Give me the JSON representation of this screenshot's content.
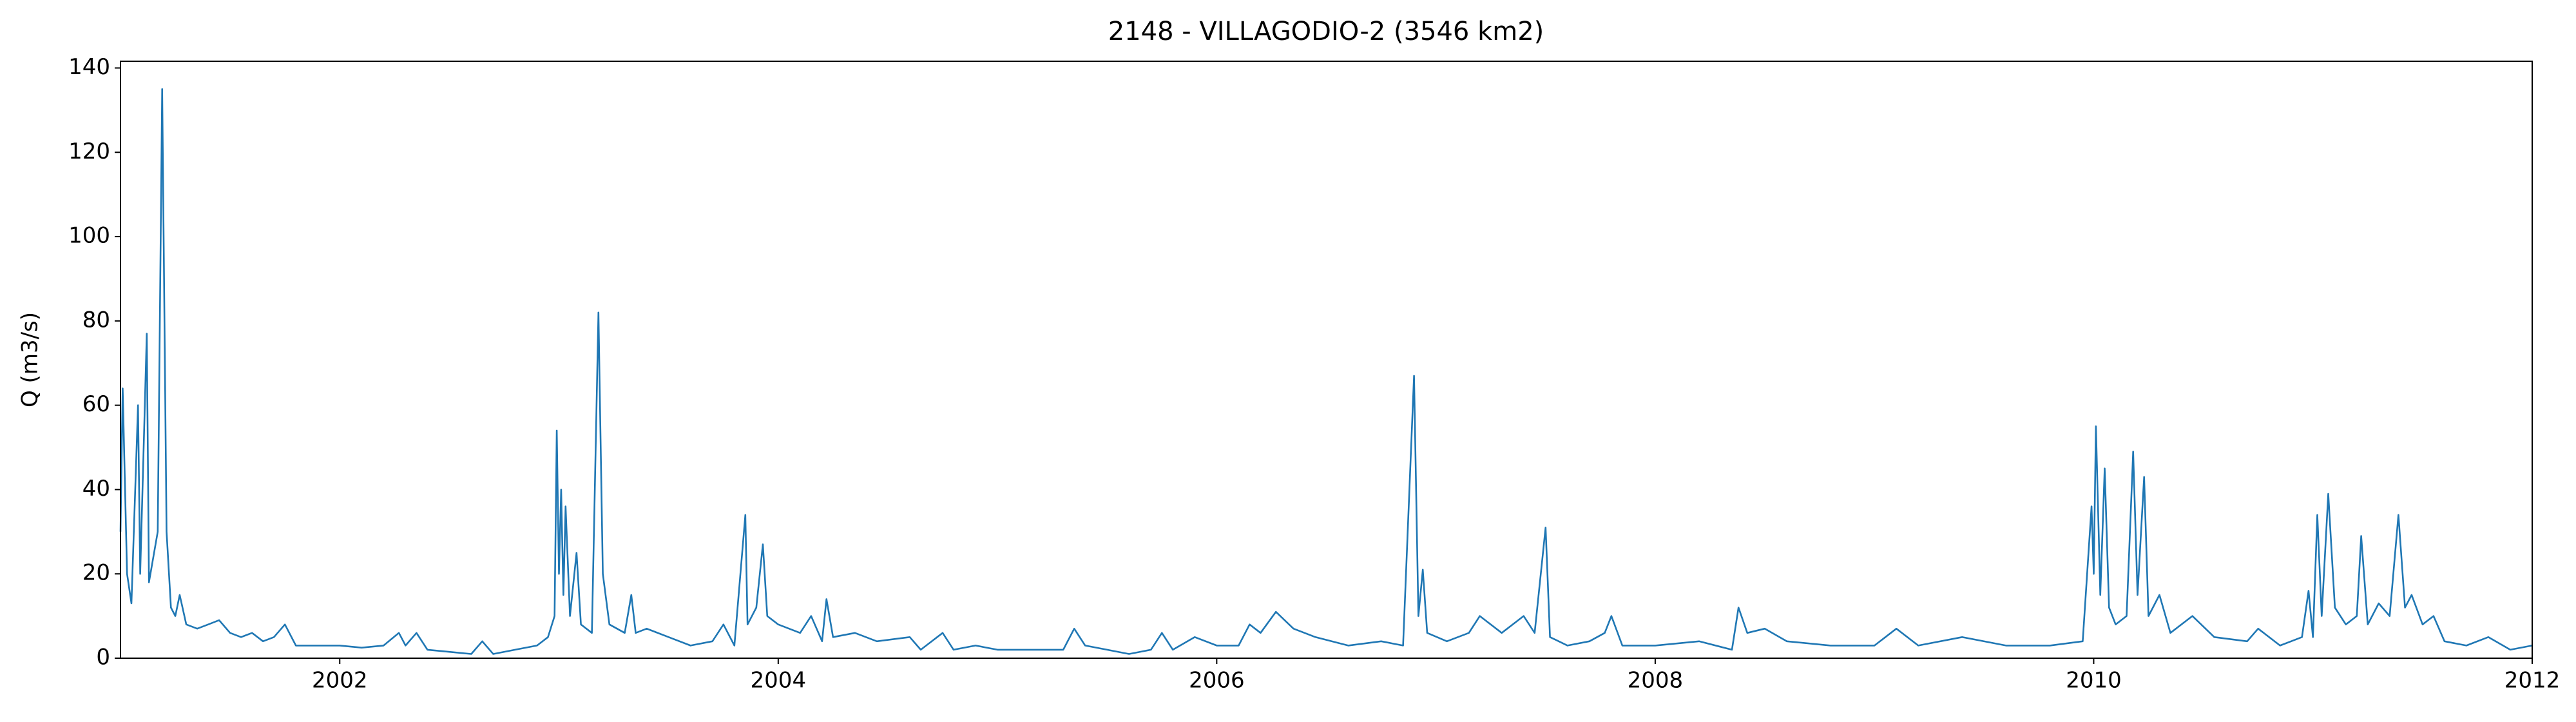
{
  "chart_data": {
    "type": "line",
    "title": "2148 - VILLAGODIO-2 (3546 km2)",
    "y_label": "Q (m3/s)",
    "x": [
      2001.0,
      2001.01,
      2001.03,
      2001.05,
      2001.08,
      2001.09,
      2001.12,
      2001.13,
      2001.17,
      2001.19,
      2001.21,
      2001.23,
      2001.25,
      2001.27,
      2001.3,
      2001.35,
      2001.4,
      2001.45,
      2001.5,
      2001.55,
      2001.6,
      2001.65,
      2001.7,
      2001.75,
      2001.8,
      2001.9,
      2002.0,
      2002.1,
      2002.2,
      2002.27,
      2002.3,
      2002.35,
      2002.4,
      2002.5,
      2002.6,
      2002.65,
      2002.7,
      2002.8,
      2002.9,
      2002.95,
      2002.98,
      2002.99,
      2003.0,
      2003.01,
      2003.02,
      2003.03,
      2003.05,
      2003.08,
      2003.1,
      2003.15,
      2003.18,
      2003.2,
      2003.23,
      2003.3,
      2003.33,
      2003.35,
      2003.4,
      2003.5,
      2003.6,
      2003.7,
      2003.75,
      2003.8,
      2003.85,
      2003.86,
      2003.9,
      2003.93,
      2003.95,
      2004.0,
      2004.1,
      2004.15,
      2004.2,
      2004.22,
      2004.25,
      2004.35,
      2004.45,
      2004.6,
      2004.65,
      2004.75,
      2004.8,
      2004.9,
      2005.0,
      2005.2,
      2005.3,
      2005.35,
      2005.4,
      2005.5,
      2005.6,
      2005.7,
      2005.75,
      2005.8,
      2005.9,
      2006.0,
      2006.1,
      2006.15,
      2006.2,
      2006.27,
      2006.35,
      2006.45,
      2006.6,
      2006.75,
      2006.85,
      2006.9,
      2006.92,
      2006.94,
      2006.96,
      2007.05,
      2007.15,
      2007.2,
      2007.3,
      2007.4,
      2007.45,
      2007.5,
      2007.52,
      2007.6,
      2007.7,
      2007.77,
      2007.8,
      2007.85,
      2008.0,
      2008.2,
      2008.35,
      2008.38,
      2008.42,
      2008.5,
      2008.6,
      2008.8,
      2009.0,
      2009.1,
      2009.2,
      2009.4,
      2009.6,
      2009.8,
      2009.95,
      2009.99,
      2010.0,
      2010.01,
      2010.03,
      2010.05,
      2010.07,
      2010.1,
      2010.15,
      2010.18,
      2010.2,
      2010.23,
      2010.25,
      2010.3,
      2010.35,
      2010.45,
      2010.55,
      2010.7,
      2010.75,
      2010.85,
      2010.95,
      2010.98,
      2011.0,
      2011.02,
      2011.04,
      2011.07,
      2011.1,
      2011.15,
      2011.2,
      2011.22,
      2011.25,
      2011.3,
      2011.35,
      2011.39,
      2011.42,
      2011.45,
      2011.5,
      2011.55,
      2011.6,
      2011.7,
      2011.8,
      2011.9,
      2012.0
    ],
    "series": [
      {
        "color": "#1f77b4",
        "values": [
          30,
          64,
          20,
          13,
          60,
          20,
          77,
          18,
          30,
          135,
          30,
          12,
          10,
          15,
          8,
          7,
          8,
          9,
          6,
          5,
          6,
          4,
          5,
          8,
          3,
          3,
          3,
          2.5,
          3,
          6,
          3,
          6,
          2,
          1.5,
          1,
          4,
          1,
          2,
          3,
          5,
          10,
          54,
          20,
          40,
          15,
          36,
          10,
          25,
          8,
          6,
          82,
          20,
          8,
          6,
          15,
          6,
          7,
          5,
          3,
          4,
          8,
          3,
          34,
          8,
          12,
          27,
          10,
          8,
          6,
          10,
          4,
          14,
          5,
          6,
          4,
          5,
          2,
          6,
          2,
          3,
          2,
          2,
          2,
          7,
          3,
          2,
          1,
          2,
          6,
          2,
          5,
          3,
          3,
          8,
          6,
          11,
          7,
          5,
          3,
          4,
          3,
          67,
          10,
          21,
          6,
          4,
          6,
          10,
          6,
          10,
          6,
          31,
          5,
          3,
          4,
          6,
          10,
          3,
          3,
          4,
          2,
          12,
          6,
          7,
          4,
          3,
          3,
          7,
          3,
          5,
          3,
          3,
          4,
          36,
          20,
          55,
          15,
          45,
          12,
          8,
          10,
          49,
          15,
          43,
          10,
          15,
          6,
          10,
          5,
          4,
          7,
          3,
          5,
          16,
          5,
          34,
          10,
          39,
          12,
          8,
          10,
          29,
          8,
          13,
          10,
          34,
          12,
          15,
          8,
          10,
          4,
          3,
          5,
          2,
          3
        ]
      }
    ],
    "xlim": [
      2001,
      2012
    ],
    "xticks": [
      2002,
      2004,
      2006,
      2008,
      2010,
      2012
    ],
    "ylim": [
      0,
      141.6
    ],
    "yticks": [
      0,
      20,
      40,
      60,
      80,
      100,
      120,
      140
    ]
  }
}
